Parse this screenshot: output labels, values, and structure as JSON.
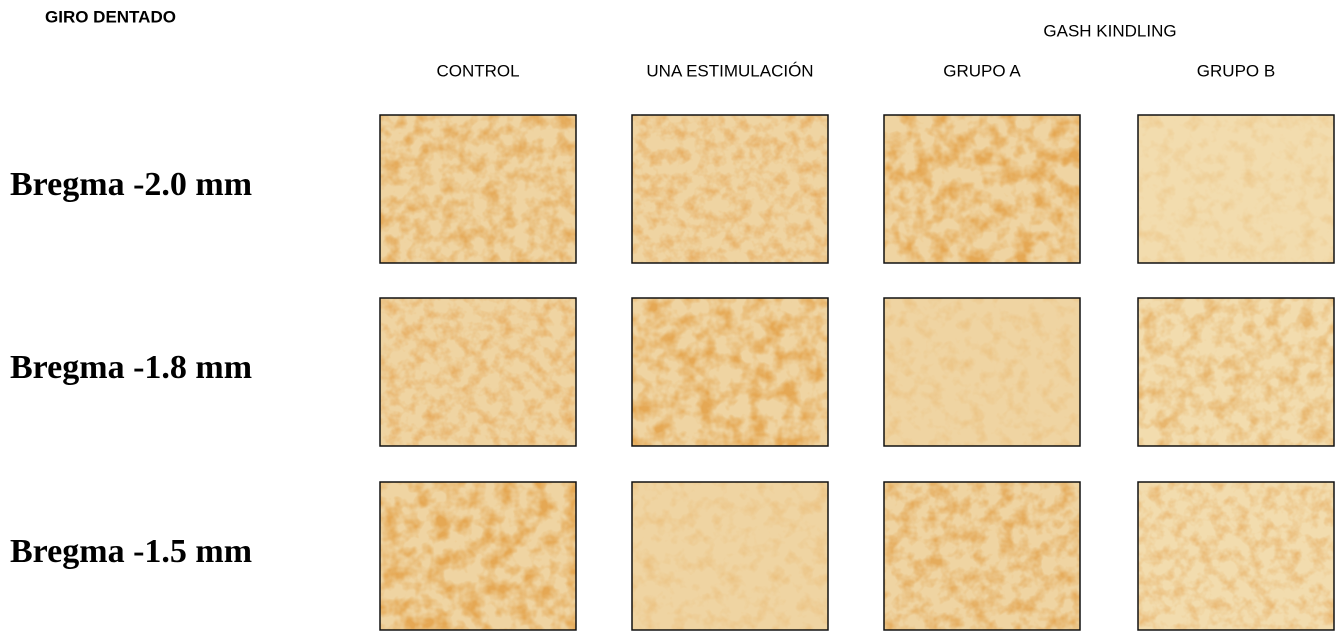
{
  "title": "GIRO DENTADO",
  "group_label": "GASH KINDLING",
  "columns": [
    "CONTROL",
    "UNA ESTIMULACIÓN",
    "GRUPO A",
    "GRUPO B"
  ],
  "rows": [
    "Bregma -2.0 mm",
    "Bregma -1.8 mm",
    "Bregma -1.5 mm"
  ]
}
